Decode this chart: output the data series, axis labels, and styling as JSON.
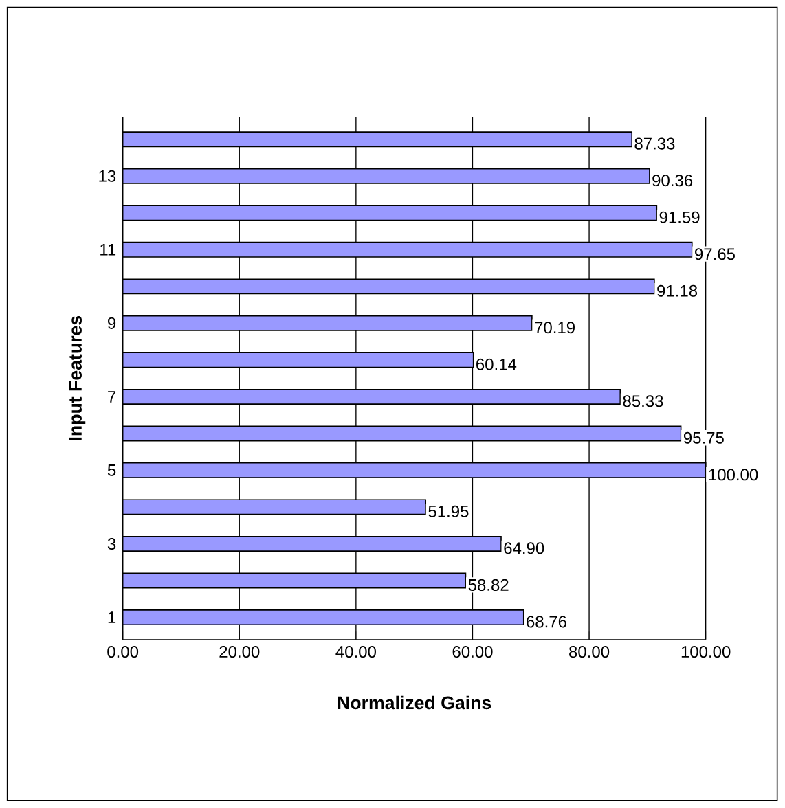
{
  "chart_data": {
    "type": "bar",
    "orientation": "horizontal",
    "xlabel": "Normalized Gains",
    "ylabel": "Input Features",
    "categories": [
      null,
      "13",
      null,
      "11",
      null,
      "9",
      null,
      "7",
      null,
      "5",
      null,
      "3",
      null,
      "1"
    ],
    "values": [
      87.33,
      90.36,
      91.59,
      97.65,
      91.18,
      70.19,
      60.14,
      85.33,
      95.75,
      100.0,
      51.95,
      64.9,
      58.82,
      68.76
    ],
    "value_labels": [
      "87.33",
      "90.36",
      "91.59",
      "97.65",
      "91.18",
      "70.19",
      "60.14",
      "85.33",
      "95.75",
      "100.00",
      "51.95",
      "64.90",
      "58.82",
      "68.76"
    ],
    "color": "#9999ff",
    "xlim": [
      0,
      100
    ],
    "xticks": [
      {
        "value": 0,
        "label": "0.00"
      },
      {
        "value": 20,
        "label": "20.00"
      },
      {
        "value": 40,
        "label": "40.00"
      },
      {
        "value": 60,
        "label": "60.00"
      },
      {
        "value": 80,
        "label": "80.00"
      },
      {
        "value": 100,
        "label": "100.00"
      }
    ],
    "grid": "x"
  }
}
